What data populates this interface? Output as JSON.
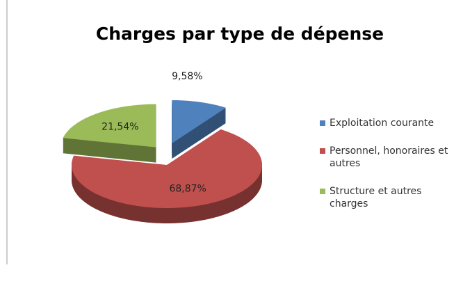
{
  "chart_data": {
    "type": "pie",
    "title": "Charges par type de dépense",
    "categories": [
      "Exploitation courante",
      "Personnel, honoraires et autres",
      "Structure et autres charges"
    ],
    "values": [
      9.58,
      68.87,
      21.54
    ],
    "value_labels": [
      "9,58%",
      "68,87%",
      "21,54%"
    ],
    "colors": [
      "#4f81bd",
      "#c0504d",
      "#9bbb59"
    ],
    "legend": "right"
  }
}
